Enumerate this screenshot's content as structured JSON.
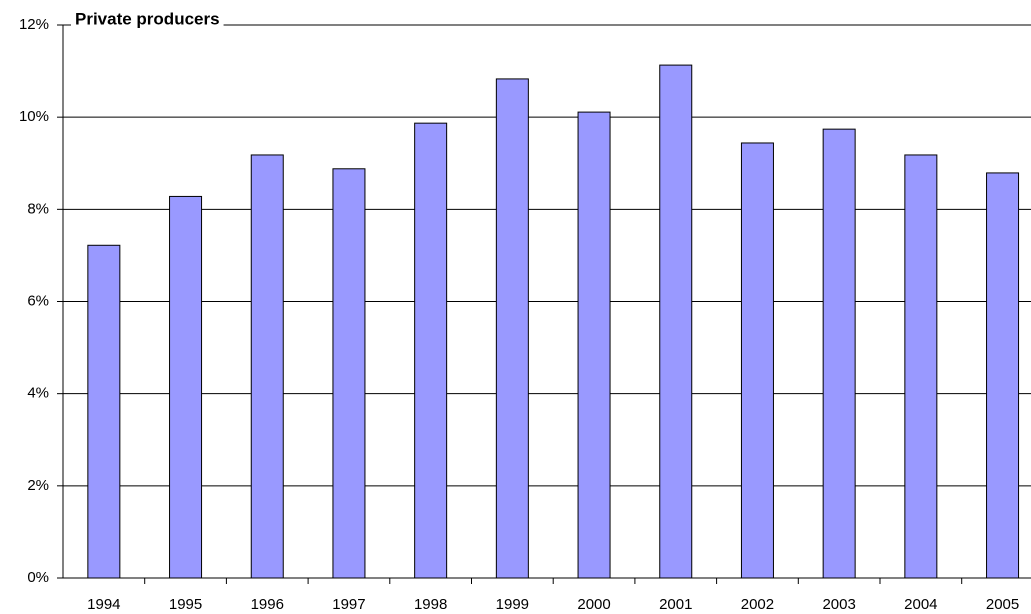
{
  "chart_data": {
    "type": "bar",
    "title": "Private producers",
    "categories": [
      "1994",
      "1995",
      "1996",
      "1997",
      "1998",
      "1999",
      "2000",
      "2001",
      "2002",
      "2003",
      "2004",
      "2005"
    ],
    "values": [
      7.22,
      8.28,
      9.18,
      8.88,
      9.87,
      10.83,
      10.11,
      11.13,
      9.44,
      9.74,
      9.18,
      8.79
    ],
    "color": "#9999ff",
    "ylim": [
      0,
      12
    ],
    "yticks": [
      {
        "value": 0,
        "label": "0%"
      },
      {
        "value": 2,
        "label": "2%"
      },
      {
        "value": 4,
        "label": "4%"
      },
      {
        "value": 6,
        "label": "6%"
      },
      {
        "value": 8,
        "label": "8%"
      },
      {
        "value": 10,
        "label": "10%"
      },
      {
        "value": 12,
        "label": "12%"
      }
    ],
    "grid": true
  }
}
